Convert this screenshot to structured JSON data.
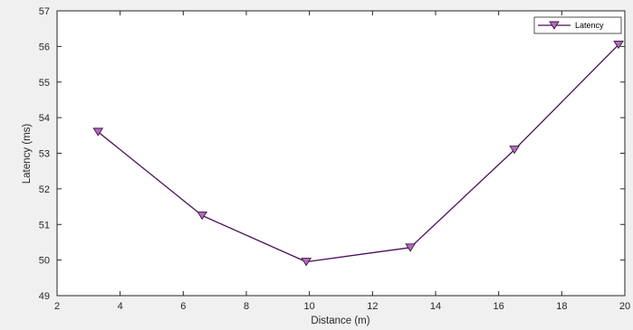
{
  "chart_data": {
    "type": "line",
    "xlabel": "Distance (m)",
    "ylabel": "Latency (ms)",
    "xlim": [
      2,
      20
    ],
    "ylim": [
      49,
      57
    ],
    "xticks": [
      2,
      4,
      6,
      8,
      10,
      12,
      14,
      16,
      18,
      20
    ],
    "yticks": [
      49,
      50,
      51,
      52,
      53,
      54,
      55,
      56,
      57
    ],
    "grid": false,
    "legend_position": "top-right",
    "series": [
      {
        "name": "Latency",
        "color": "#4b0f5a",
        "marker_color": "#b06bb8",
        "marker": "triangle-down",
        "x": [
          3.3,
          6.6,
          9.9,
          13.2,
          16.5,
          19.8
        ],
        "y": [
          53.6,
          51.25,
          49.95,
          50.35,
          53.1,
          56.05
        ]
      }
    ]
  }
}
